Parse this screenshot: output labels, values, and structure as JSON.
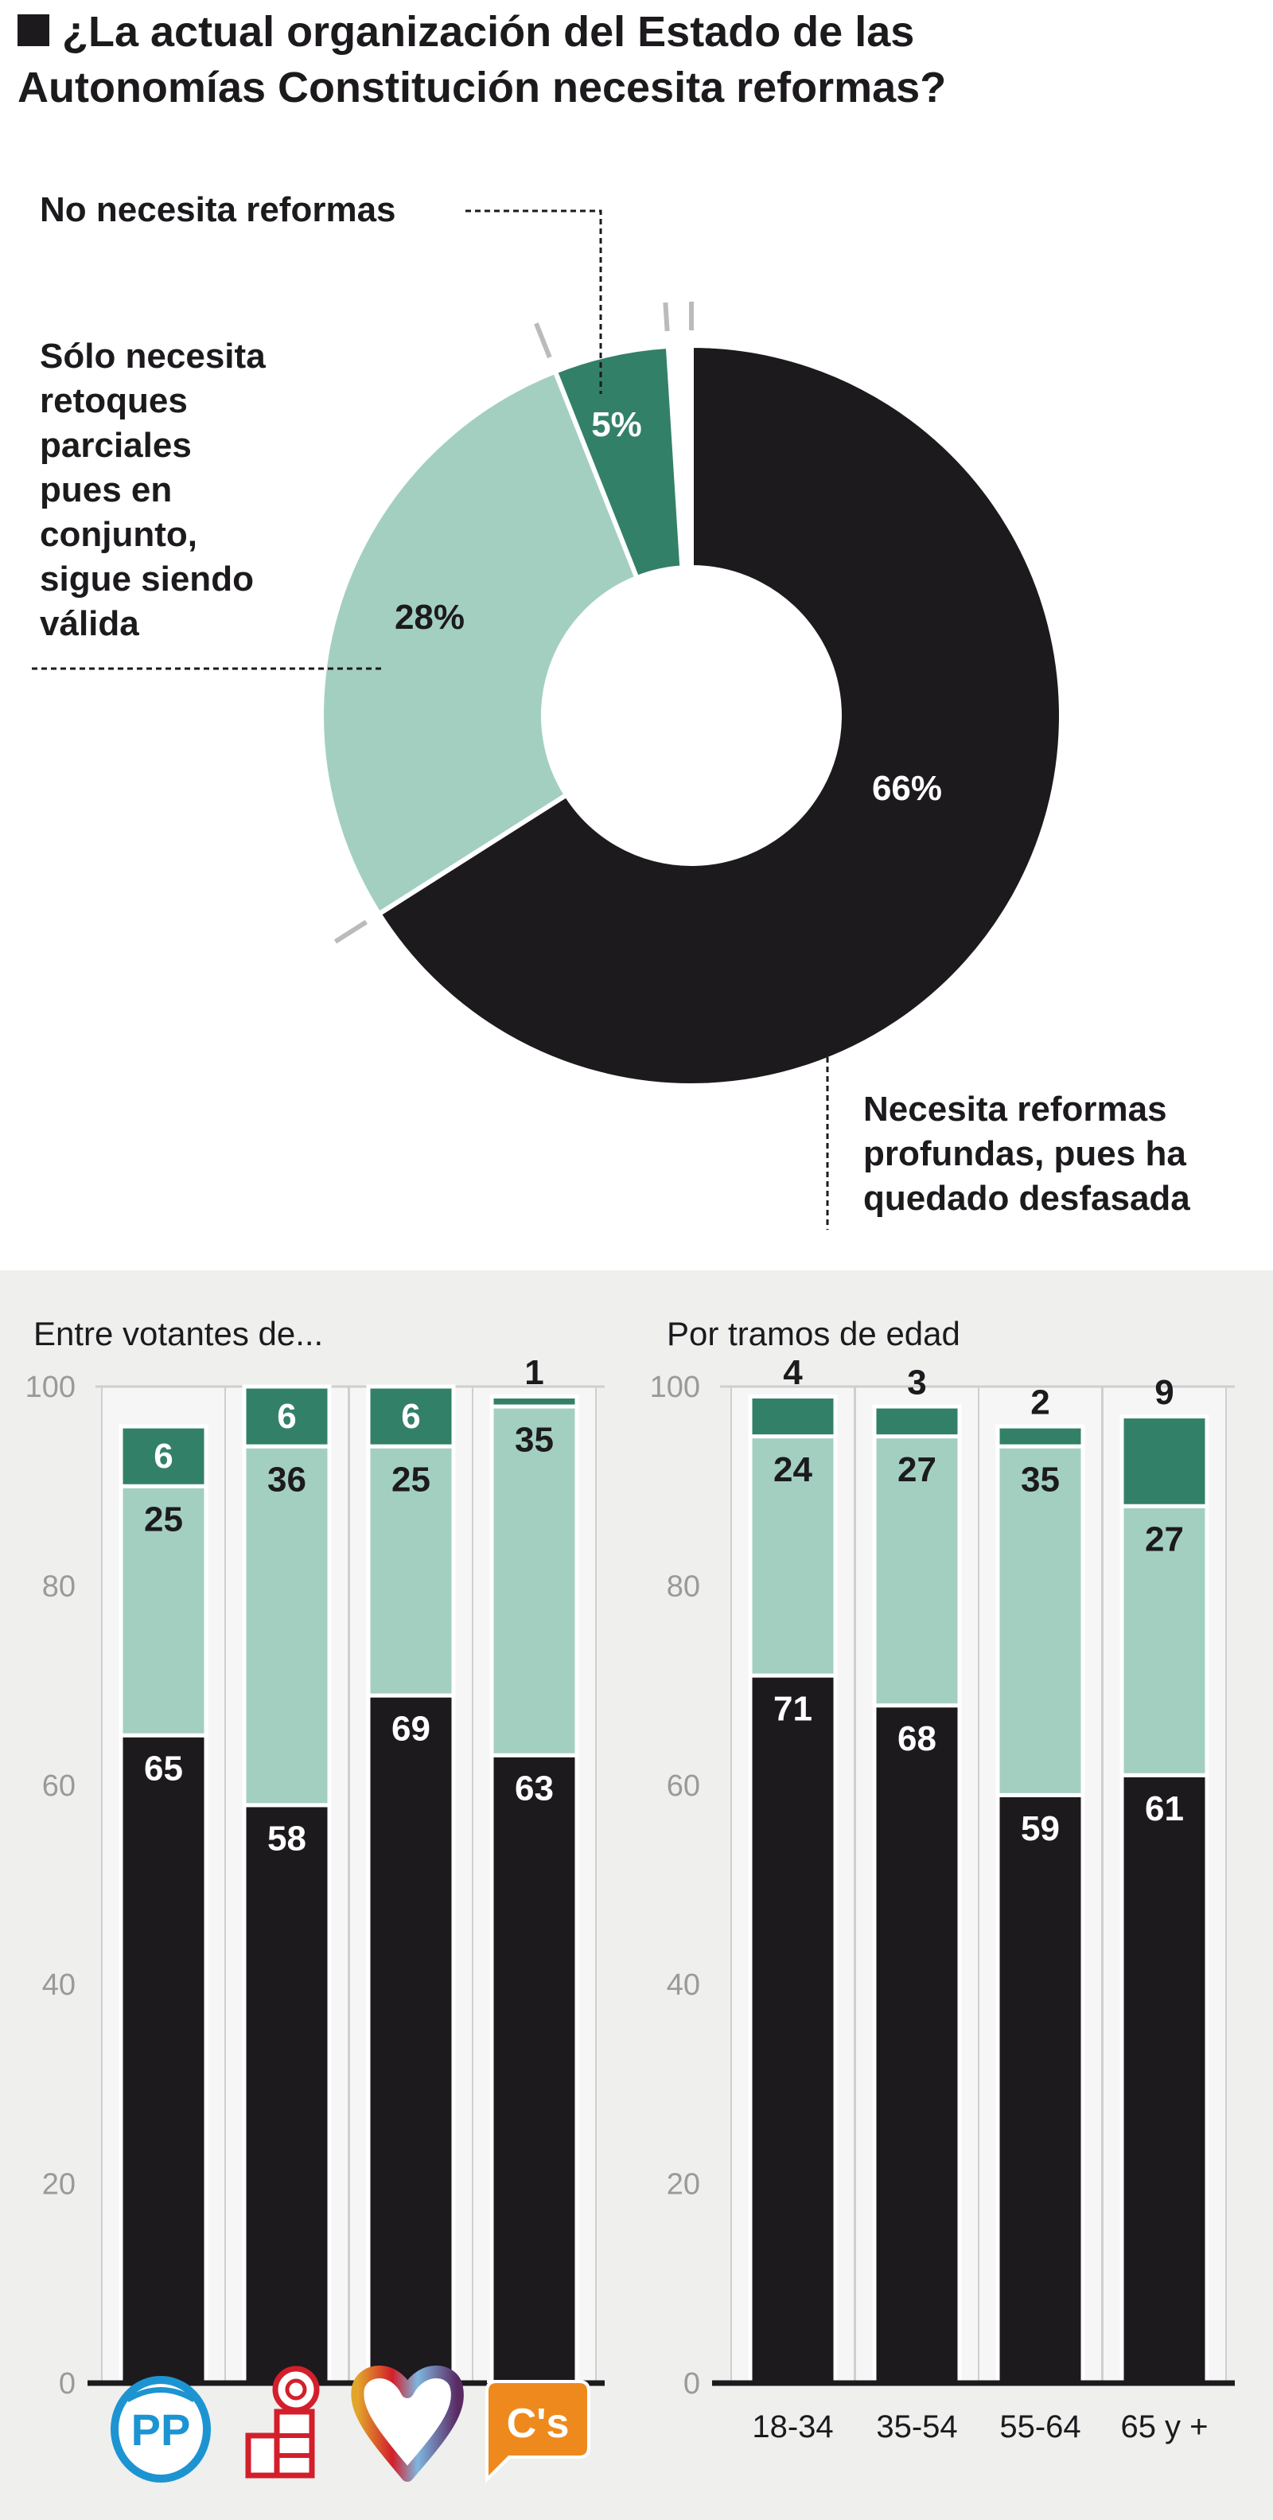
{
  "title": {
    "icon": "black-square-icon",
    "line1": "¿La actual organización del Estado de las",
    "line2": "Autonomías Constitución necesita reformas?"
  },
  "colors": {
    "profundas": "#1c1a1d",
    "retoques": "#a3cfc1",
    "no_necesita": "#338068",
    "panel_bg": "#efefee"
  },
  "chart_data": [
    {
      "type": "pie",
      "donut": true,
      "slices": [
        {
          "label_lines": [
            "Necesita reformas",
            "profundas, pues ha",
            "quedado desfasada"
          ],
          "value": 66,
          "value_label": "66%"
        },
        {
          "label_lines": [
            "Sólo necesita",
            "retoques",
            "parciales",
            "pues en",
            "conjunto,",
            "sigue siendo",
            "válida"
          ],
          "value": 28,
          "value_label": "28%"
        },
        {
          "label_lines": [
            "No necesita reformas"
          ],
          "value": 5,
          "value_label": "5%"
        }
      ]
    },
    {
      "type": "bar",
      "stacked": true,
      "title": "Entre votantes de...",
      "categories": [
        "PP",
        "PSOE",
        "Podemos",
        "Cs"
      ],
      "category_icons": [
        "pp-logo-icon",
        "psoe-logo-icon",
        "podemos-logo-icon",
        "ciudadanos-logo-icon"
      ],
      "cs_logo_text": "C's",
      "pp_logo_text": "PP",
      "series": [
        {
          "values": [
            65,
            58,
            69,
            63
          ]
        },
        {
          "values": [
            25,
            36,
            25,
            35
          ]
        },
        {
          "values": [
            6,
            6,
            6,
            1
          ]
        }
      ],
      "ylim": [
        0,
        100
      ],
      "yticks": [
        0,
        20,
        40,
        60,
        80,
        100
      ]
    },
    {
      "type": "bar",
      "stacked": true,
      "title": "Por tramos de edad",
      "categories": [
        "18-34",
        "35-54",
        "55-64",
        "65 y +"
      ],
      "series": [
        {
          "values": [
            71,
            68,
            59,
            61
          ]
        },
        {
          "values": [
            24,
            27,
            35,
            27
          ]
        },
        {
          "values": [
            4,
            3,
            2,
            9
          ]
        }
      ],
      "ylim": [
        0,
        100
      ],
      "yticks": [
        0,
        20,
        40,
        60,
        80,
        100
      ]
    }
  ]
}
